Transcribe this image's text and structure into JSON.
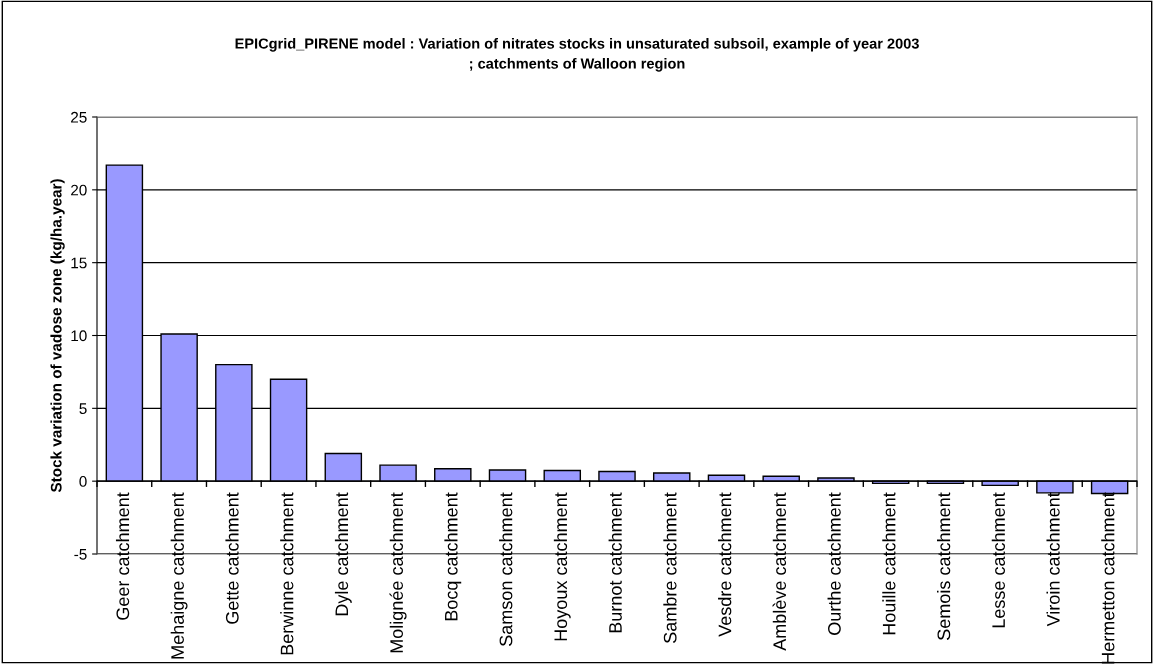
{
  "chart_data": {
    "type": "bar",
    "title": "EPICgrid_PIRENE model : Variation of nitrates stocks in unsaturated subsoil, example of year 2003\n; catchments of Walloon region",
    "ylabel": "Stock variation of vadose zone (kg/ha.year)",
    "categories": [
      "Geer catchment",
      "Mehaigne catchment",
      "Gette catchment",
      "Berwinne catchment",
      "Dyle catchment",
      "Molignée catchment",
      "Bocq catchment",
      "Samson catchment",
      "Hoyoux catchment",
      "Burnot catchment",
      "Sambre catchment",
      "Vesdre catchment",
      "Amblève catchment",
      "Ourthe catchment",
      "Houille catchment",
      "Semois catchment",
      "Lesse catchment",
      "Viroin catchment",
      "Hermetton catchment"
    ],
    "values": [
      21.7,
      10.1,
      8.0,
      7.0,
      1.9,
      1.1,
      0.85,
      0.77,
      0.73,
      0.66,
      0.56,
      0.41,
      0.34,
      0.22,
      -0.15,
      -0.15,
      -0.29,
      -0.8,
      -0.85
    ],
    "color": "#9999ff",
    "ylim": [
      -5,
      25
    ],
    "yticks": [
      -5,
      0,
      5,
      10,
      15,
      20,
      25
    ],
    "grid": "y",
    "legend": false
  }
}
